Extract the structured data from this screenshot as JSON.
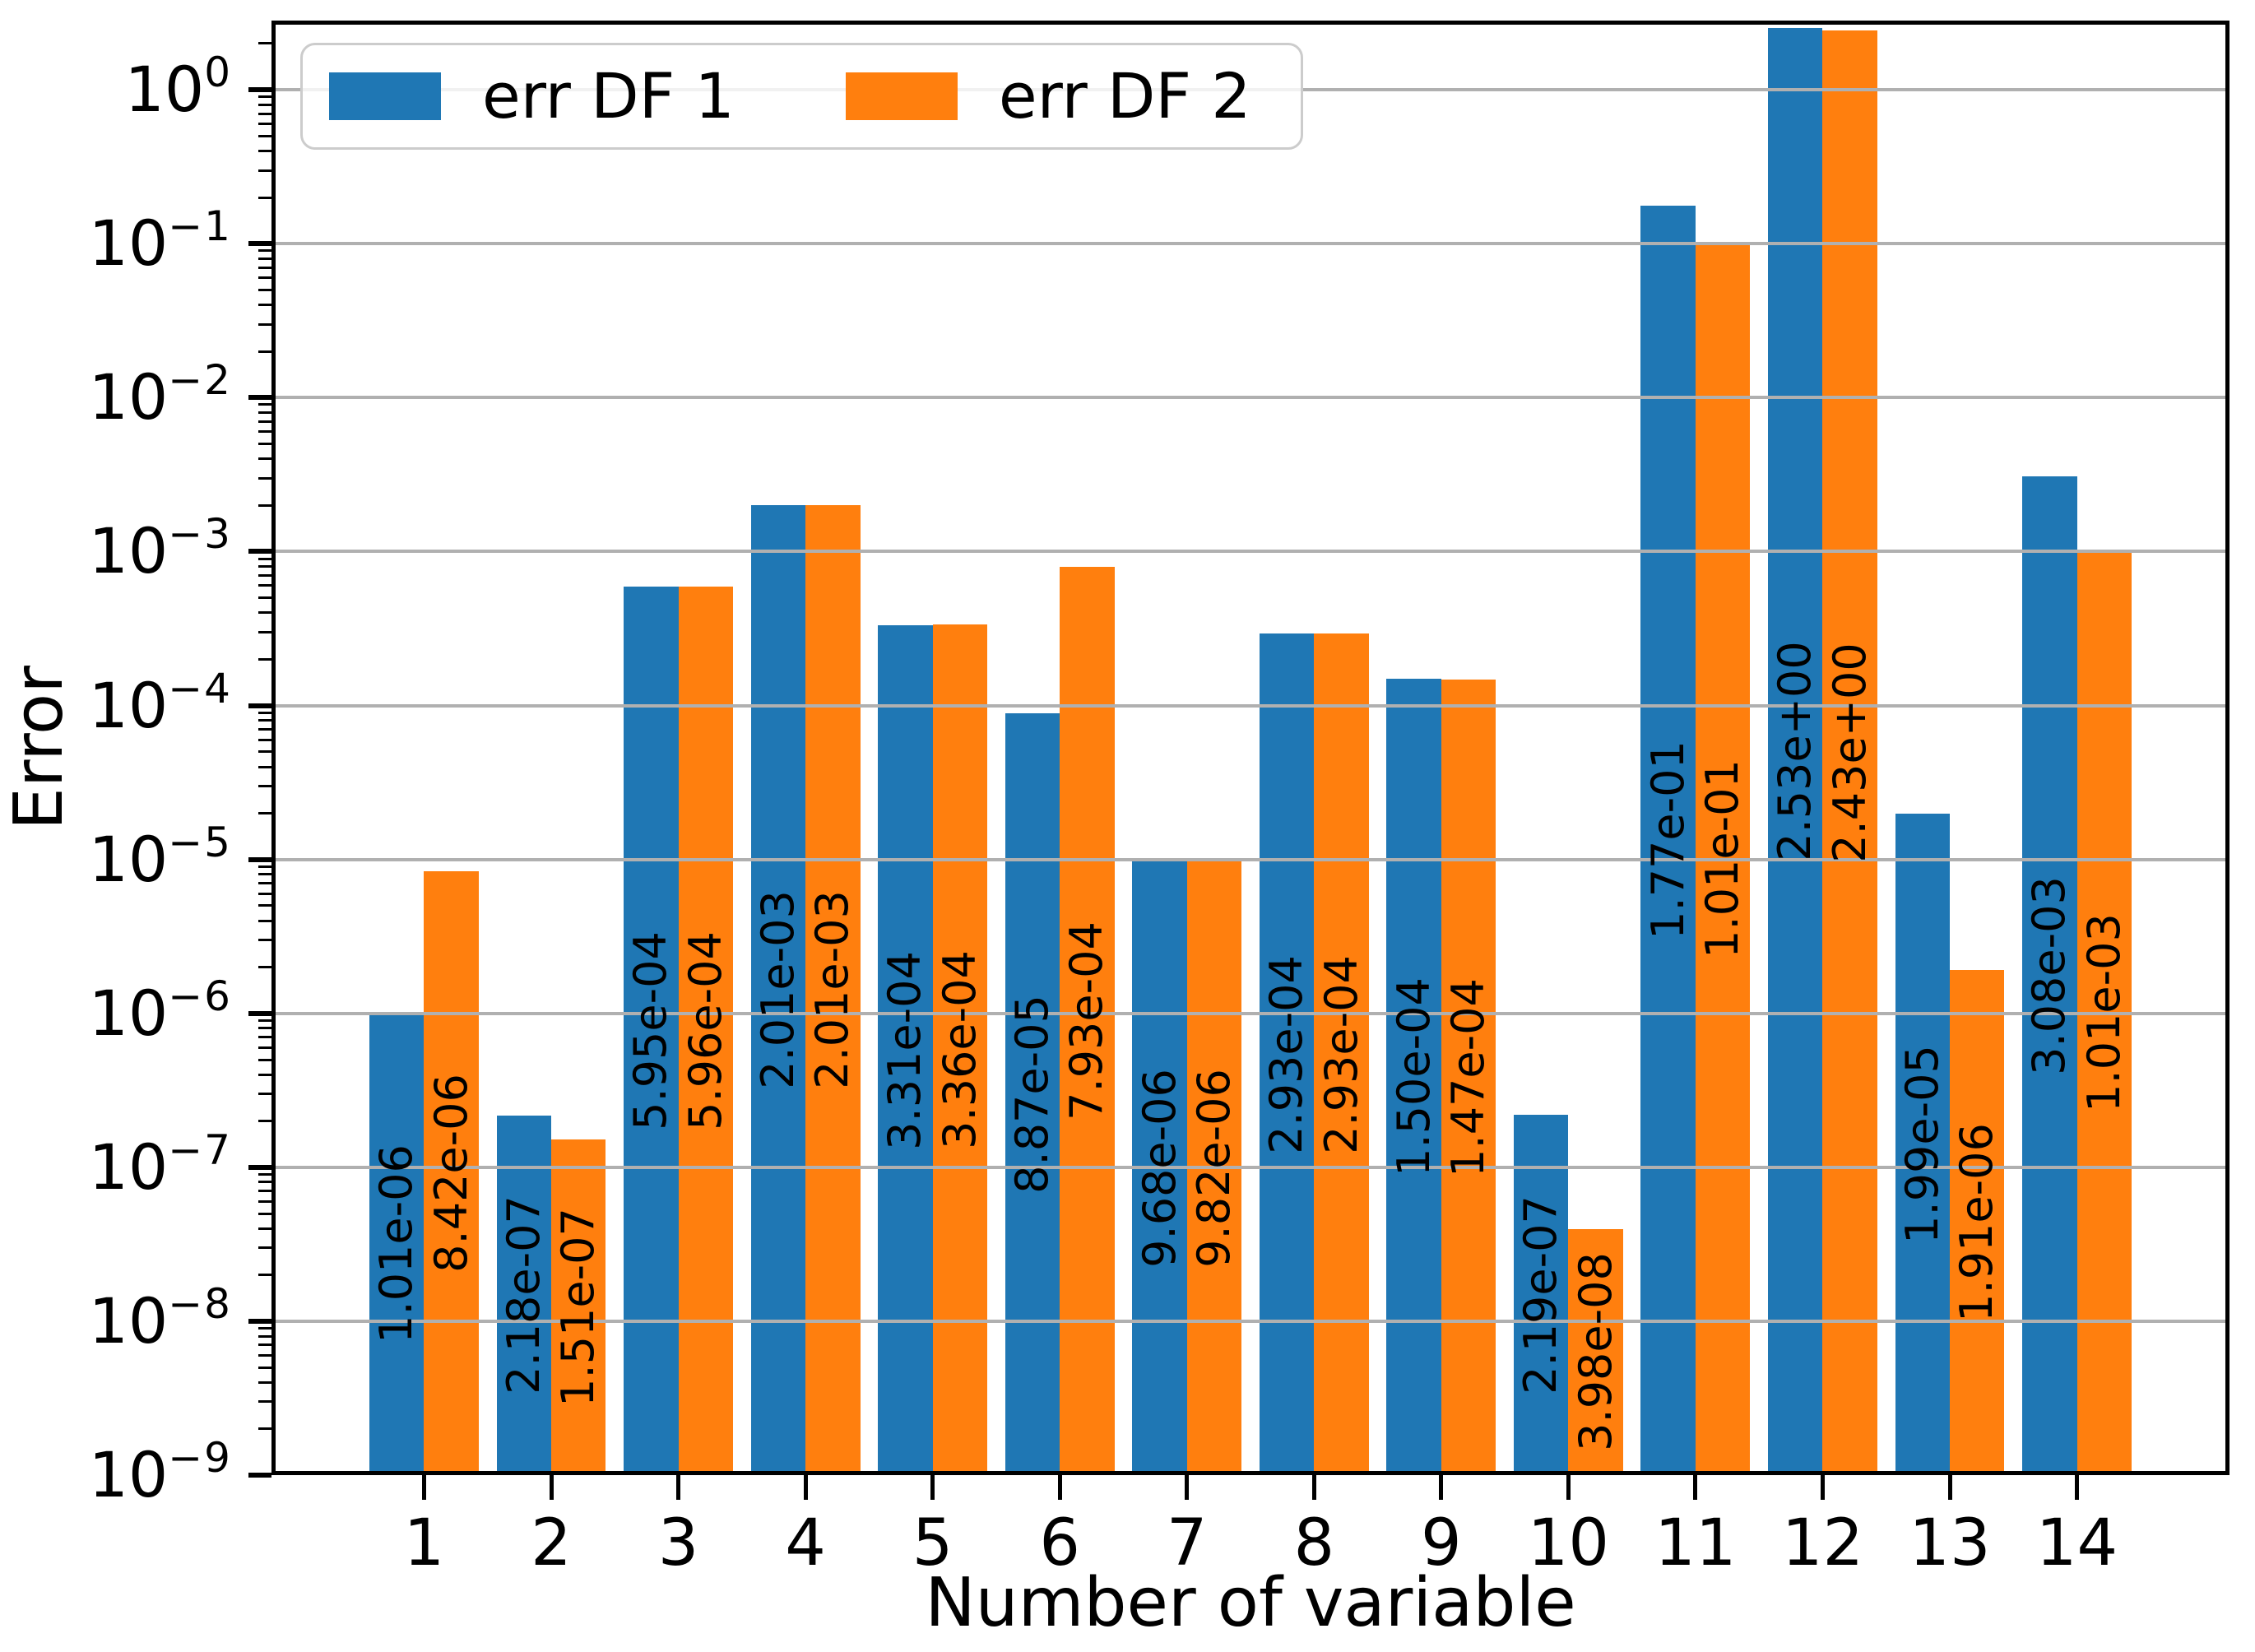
{
  "chart_data": {
    "type": "bar",
    "title": "",
    "xlabel": "Number of variable",
    "ylabel": "Error",
    "yscale": "log",
    "ylim": [
      1e-09,
      2.82
    ],
    "xlim": [
      -0.2,
      15.2
    ],
    "grid": true,
    "grid_on_top": true,
    "legend_position": "upper left",
    "bar_width": 0.43,
    "categories": [
      1,
      2,
      3,
      4,
      5,
      6,
      7,
      8,
      9,
      10,
      11,
      12,
      13,
      14
    ],
    "ytick_exponents": [
      0,
      -1,
      -2,
      -3,
      -4,
      -5,
      -6,
      -7,
      -8,
      -9
    ],
    "series": [
      {
        "name": "err DF 1",
        "color": "#1f77b4",
        "values": [
          1.01e-06,
          2.18e-07,
          0.000595,
          0.00201,
          0.000331,
          8.87e-05,
          9.68e-06,
          0.000293,
          0.00015,
          2.19e-07,
          0.177,
          2.53,
          1.99e-05,
          0.00308
        ],
        "labels": [
          "1.01e-06",
          "2.18e-07",
          "5.95e-04",
          "2.01e-03",
          "3.31e-04",
          "8.87e-05",
          "9.68e-06",
          "2.93e-04",
          "1.50e-04",
          "2.19e-07",
          "1.77e-01",
          "2.53e+00",
          "1.99e-05",
          "3.08e-03"
        ]
      },
      {
        "name": "err DF 2",
        "color": "#ff7f0e",
        "values": [
          8.42e-06,
          1.51e-07,
          0.000596,
          0.00201,
          0.000336,
          0.000793,
          9.82e-06,
          0.000293,
          0.000147,
          3.98e-08,
          0.101,
          2.43,
          1.91e-06,
          0.00101
        ],
        "labels": [
          "8.42e-06",
          "1.51e-07",
          "5.96e-04",
          "2.01e-03",
          "3.36e-04",
          "7.93e-04",
          "9.82e-06",
          "2.93e-04",
          "1.47e-04",
          "3.98e-08",
          "1.01e-01",
          "2.43e+00",
          "1.91e-06",
          "1.01e-03"
        ]
      }
    ],
    "colors": {
      "grid": "#b0b0b0",
      "spine": "#000000",
      "text": "#000000",
      "legend_border": "#cccccc"
    }
  }
}
